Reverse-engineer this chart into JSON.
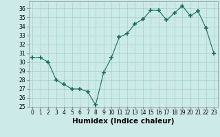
{
  "x": [
    0,
    1,
    2,
    3,
    4,
    5,
    6,
    7,
    8,
    9,
    10,
    11,
    12,
    13,
    14,
    15,
    16,
    17,
    18,
    19,
    20,
    21,
    22,
    23
  ],
  "y": [
    30.5,
    30.5,
    30.0,
    28.0,
    27.5,
    27.0,
    27.0,
    26.7,
    25.2,
    28.8,
    30.5,
    32.8,
    33.2,
    34.3,
    34.8,
    35.8,
    35.8,
    34.7,
    35.5,
    36.3,
    35.2,
    35.7,
    33.8,
    31.0
  ],
  "line_color": "#1a6b5a",
  "marker": "+",
  "marker_size": 4,
  "bg_color": "#cceae8",
  "grid_color": "#aad4d2",
  "xlabel": "Humidex (Indice chaleur)",
  "xlim": [
    -0.5,
    23.5
  ],
  "ylim": [
    25,
    36.8
  ],
  "yticks": [
    25,
    26,
    27,
    28,
    29,
    30,
    31,
    32,
    33,
    34,
    35,
    36
  ],
  "xticks": [
    0,
    1,
    2,
    3,
    4,
    5,
    6,
    7,
    8,
    9,
    10,
    11,
    12,
    13,
    14,
    15,
    16,
    17,
    18,
    19,
    20,
    21,
    22,
    23
  ],
  "tick_fontsize": 5.5,
  "xlabel_fontsize": 7.5
}
